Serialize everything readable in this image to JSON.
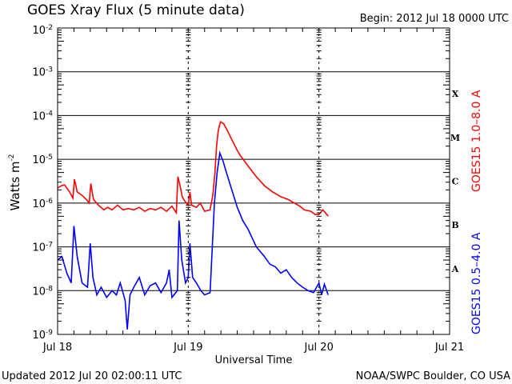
{
  "chart_data": {
    "type": "line",
    "title": "GOES Xray Flux (5 minute data)",
    "begin_label": "Begin:  2012 Jul 18 0000 UTC",
    "xlabel": "Universal Time",
    "ylabel": "Watts m",
    "ylabel_sup": "-2",
    "yscale": "log",
    "ylim": [
      1e-09,
      0.01
    ],
    "xlim_hours": [
      0,
      72
    ],
    "y_ticks": [
      {
        "base": "10",
        "exp": "-2",
        "value": 0.01
      },
      {
        "base": "10",
        "exp": "-3",
        "value": 0.001
      },
      {
        "base": "10",
        "exp": "-4",
        "value": 0.0001
      },
      {
        "base": "10",
        "exp": "-5",
        "value": 1e-05
      },
      {
        "base": "10",
        "exp": "-6",
        "value": 1e-06
      },
      {
        "base": "10",
        "exp": "-7",
        "value": 1e-07
      },
      {
        "base": "10",
        "exp": "-8",
        "value": 1e-08
      },
      {
        "base": "10",
        "exp": "-9",
        "value": 1e-09
      }
    ],
    "x_ticks": [
      {
        "label": "Jul 18",
        "hour": 0
      },
      {
        "label": "Jul 19",
        "hour": 24
      },
      {
        "label": "Jul 20",
        "hour": 48
      },
      {
        "label": "Jul 21",
        "hour": 72
      }
    ],
    "flare_classes": [
      {
        "label": "X",
        "lo": 0.0001,
        "hi": 0.001
      },
      {
        "label": "M",
        "lo": 1e-05,
        "hi": 0.0001
      },
      {
        "label": "C",
        "lo": 1e-06,
        "hi": 1e-05
      },
      {
        "label": "B",
        "lo": 1e-07,
        "hi": 1e-06
      },
      {
        "label": "A",
        "lo": 1e-08,
        "hi": 1e-07
      }
    ],
    "grid": true,
    "series": [
      {
        "name": "GOES15 1.0-8.0 A",
        "legend_label": "GOES15 1.0–8.0 A",
        "color": "#ff0000",
        "points": [
          [
            0,
            2.2e-06
          ],
          [
            0.7,
            2.5e-06
          ],
          [
            1.3,
            2.6e-06
          ],
          [
            2.2,
            1.8e-06
          ],
          [
            2.8,
            1.3e-06
          ],
          [
            3.1,
            3.5e-06
          ],
          [
            3.6,
            1.8e-06
          ],
          [
            4.5,
            1.5e-06
          ],
          [
            5.3,
            1.2e-06
          ],
          [
            5.8,
            1e-06
          ],
          [
            6.1,
            2.8e-06
          ],
          [
            6.6,
            1.2e-06
          ],
          [
            7.5,
            9e-07
          ],
          [
            8.5,
            7e-07
          ],
          [
            9.2,
            8e-07
          ],
          [
            10,
            7e-07
          ],
          [
            11,
            9e-07
          ],
          [
            12,
            7e-07
          ],
          [
            13,
            7.5e-07
          ],
          [
            14,
            7e-07
          ],
          [
            15,
            8e-07
          ],
          [
            16,
            6.5e-07
          ],
          [
            17,
            7.5e-07
          ],
          [
            18,
            7e-07
          ],
          [
            19,
            8e-07
          ],
          [
            20,
            6.5e-07
          ],
          [
            21,
            8.5e-07
          ],
          [
            21.8,
            6e-07
          ],
          [
            22.1,
            4e-06
          ],
          [
            22.5,
            2.5e-06
          ],
          [
            22.9,
            1.4e-06
          ],
          [
            23.4,
            1.1e-06
          ],
          [
            24,
            9e-07
          ],
          [
            24.3,
            1.8e-06
          ],
          [
            24.6,
            9e-07
          ],
          [
            25.5,
            8e-07
          ],
          [
            26.2,
            1e-06
          ],
          [
            27,
            6.5e-07
          ],
          [
            28,
            7e-07
          ],
          [
            28.5,
            1.5e-06
          ],
          [
            28.9,
            5e-06
          ],
          [
            29.2,
            2e-05
          ],
          [
            29.5,
            4.5e-05
          ],
          [
            29.9,
            7.2e-05
          ],
          [
            30.5,
            6.5e-05
          ],
          [
            31.2,
            4.5e-05
          ],
          [
            32,
            2.8e-05
          ],
          [
            33,
            1.6e-05
          ],
          [
            33.6,
            1.2e-05
          ],
          [
            35,
            7e-06
          ],
          [
            36.5,
            4e-06
          ],
          [
            38,
            2.5e-06
          ],
          [
            39.5,
            1.8e-06
          ],
          [
            41,
            1.4e-06
          ],
          [
            42.4,
            1.2e-06
          ],
          [
            43.5,
            1e-06
          ],
          [
            44.5,
            8.5e-07
          ],
          [
            45.3,
            7e-07
          ],
          [
            46.5,
            6.5e-07
          ],
          [
            47.3,
            5.5e-07
          ],
          [
            48,
            5.5e-07
          ],
          [
            48.7,
            7e-07
          ],
          [
            49.2,
            6e-07
          ],
          [
            49.7,
            5e-07
          ]
        ]
      },
      {
        "name": "GOES15 0.5-4.0 A",
        "legend_label": "GOES15 0.5–4.0 A",
        "color": "#0000ff",
        "points": [
          [
            0,
            5e-08
          ],
          [
            0.8,
            6e-08
          ],
          [
            1.7,
            2.5e-08
          ],
          [
            2.5,
            1.5e-08
          ],
          [
            3.0,
            3e-07
          ],
          [
            3.6,
            6e-08
          ],
          [
            4.5,
            1.5e-08
          ],
          [
            5.5,
            1.2e-08
          ],
          [
            6.0,
            1.2e-07
          ],
          [
            6.5,
            2e-08
          ],
          [
            7.2,
            8e-09
          ],
          [
            8,
            1.2e-08
          ],
          [
            9,
            7e-09
          ],
          [
            10,
            1e-08
          ],
          [
            10.8,
            8e-09
          ],
          [
            11.5,
            1.5e-08
          ],
          [
            12.4,
            6e-09
          ],
          [
            12.8,
            1.3e-09
          ],
          [
            13.3,
            8e-09
          ],
          [
            14,
            1.2e-08
          ],
          [
            15,
            2e-08
          ],
          [
            16,
            8e-09
          ],
          [
            17,
            1.3e-08
          ],
          [
            18,
            1.5e-08
          ],
          [
            19,
            9e-09
          ],
          [
            20,
            1.5e-08
          ],
          [
            20.5,
            3e-08
          ],
          [
            21,
            7e-09
          ],
          [
            22,
            1e-08
          ],
          [
            22.3,
            4e-07
          ],
          [
            22.8,
            5e-08
          ],
          [
            23.5,
            1.5e-08
          ],
          [
            24,
            2e-08
          ],
          [
            24.3,
            1.2e-07
          ],
          [
            24.8,
            2e-08
          ],
          [
            25.5,
            1.5e-08
          ],
          [
            26.3,
            1e-08
          ],
          [
            27,
            8e-09
          ],
          [
            28,
            9e-09
          ],
          [
            28.3,
            5e-08
          ],
          [
            28.8,
            1e-06
          ],
          [
            29.3,
            5e-06
          ],
          [
            29.8,
            1.4e-05
          ],
          [
            30.4,
            9e-06
          ],
          [
            31,
            5e-06
          ],
          [
            32,
            2e-06
          ],
          [
            33,
            8e-07
          ],
          [
            34,
            4e-07
          ],
          [
            35,
            2.5e-07
          ],
          [
            36.5,
            1e-07
          ],
          [
            38,
            6e-08
          ],
          [
            39,
            4e-08
          ],
          [
            40,
            3.5e-08
          ],
          [
            41,
            2.5e-08
          ],
          [
            42,
            3e-08
          ],
          [
            43,
            2e-08
          ],
          [
            44,
            1.5e-08
          ],
          [
            45,
            1.2e-08
          ],
          [
            46,
            1e-08
          ],
          [
            47,
            9e-09
          ],
          [
            48,
            1.5e-08
          ],
          [
            48.5,
            8e-09
          ],
          [
            49,
            1.4e-08
          ],
          [
            49.7,
            8e-09
          ]
        ]
      }
    ]
  },
  "footer": {
    "updated": "Updated 2012 Jul 20 02:00:11 UTC",
    "credit": "NOAA/SWPC Boulder, CO USA"
  }
}
